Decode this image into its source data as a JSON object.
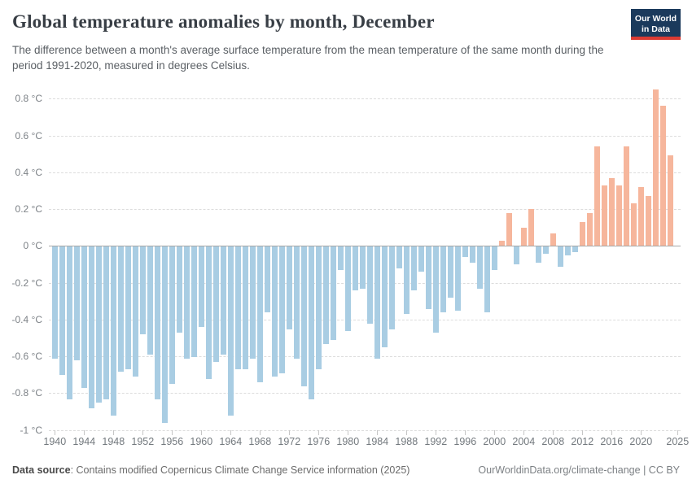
{
  "header": {
    "title": "Global temperature anomalies by month, December",
    "subtitle": "The difference between a month's average surface temperature from the mean temperature of the same month during the period 1991-2020, measured in degrees Celsius.",
    "logo": {
      "line1": "Our World",
      "line2": "in Data"
    }
  },
  "chart_data": {
    "type": "bar",
    "title": "Global temperature anomalies by month, December",
    "xlabel": "",
    "ylabel": "degrees Celsius",
    "ylim": [
      -1,
      0.9
    ],
    "grid": "horizontal-dashed",
    "legend": "none",
    "colors": {
      "positive": "#f6b69c",
      "negative": "#a9cde3"
    },
    "y_tick_values": [
      0.8,
      0.6,
      0.4,
      0.2,
      0,
      -0.2,
      -0.4,
      -0.6,
      -0.8,
      -1
    ],
    "y_tick_labels": [
      "0.8 °C",
      "0.6 °C",
      "0.4 °C",
      "0.2 °C",
      "0 °C",
      "-0.2 °C",
      "-0.4 °C",
      "-0.6 °C",
      "-0.8 °C",
      "-1 °C"
    ],
    "x_tick_values": [
      1940,
      1944,
      1948,
      1952,
      1956,
      1960,
      1964,
      1968,
      1972,
      1976,
      1980,
      1984,
      1988,
      1992,
      1996,
      2000,
      2004,
      2008,
      2012,
      2016,
      2020,
      2025
    ],
    "years": [
      1940,
      1941,
      1942,
      1943,
      1944,
      1945,
      1946,
      1947,
      1948,
      1949,
      1950,
      1951,
      1952,
      1953,
      1954,
      1955,
      1956,
      1957,
      1958,
      1959,
      1960,
      1961,
      1962,
      1963,
      1964,
      1965,
      1966,
      1967,
      1968,
      1969,
      1970,
      1971,
      1972,
      1973,
      1974,
      1975,
      1976,
      1977,
      1978,
      1979,
      1980,
      1981,
      1982,
      1983,
      1984,
      1985,
      1986,
      1987,
      1988,
      1989,
      1990,
      1991,
      1992,
      1993,
      1994,
      1995,
      1996,
      1997,
      1998,
      1999,
      2000,
      2001,
      2002,
      2003,
      2004,
      2005,
      2006,
      2007,
      2008,
      2009,
      2010,
      2011,
      2012,
      2013,
      2014,
      2015,
      2016,
      2017,
      2018,
      2019,
      2020,
      2021,
      2022,
      2023,
      2024
    ],
    "values": [
      -0.61,
      -0.7,
      -0.83,
      -0.62,
      -0.77,
      -0.88,
      -0.85,
      -0.83,
      -0.92,
      -0.68,
      -0.67,
      -0.71,
      -0.48,
      -0.59,
      -0.83,
      -0.96,
      -0.75,
      -0.47,
      -0.61,
      -0.6,
      -0.44,
      -0.72,
      -0.63,
      -0.59,
      -0.92,
      -0.67,
      -0.67,
      -0.61,
      -0.74,
      -0.36,
      -0.71,
      -0.69,
      -0.45,
      -0.61,
      -0.76,
      -0.83,
      -0.67,
      -0.53,
      -0.51,
      -0.13,
      -0.46,
      -0.24,
      -0.23,
      -0.42,
      -0.61,
      -0.55,
      -0.45,
      -0.12,
      -0.37,
      -0.24,
      -0.14,
      -0.34,
      -0.47,
      -0.36,
      -0.28,
      -0.35,
      -0.06,
      -0.09,
      -0.23,
      -0.36,
      -0.13,
      0.03,
      0.18,
      -0.1,
      0.1,
      0.2,
      -0.09,
      -0.04,
      0.07,
      -0.11,
      -0.05,
      -0.03,
      0.13,
      0.18,
      0.54,
      0.33,
      0.37,
      0.33,
      0.54,
      0.23,
      0.32,
      0.27,
      0.85,
      0.76,
      0.49
    ]
  },
  "footer": {
    "label": "Data source",
    "separator": ": ",
    "source": "Contains modified Copernicus Climate Change Service information (2025)",
    "link": "OurWorldinData.org/climate-change",
    "divider": " | ",
    "license": "CC BY"
  }
}
